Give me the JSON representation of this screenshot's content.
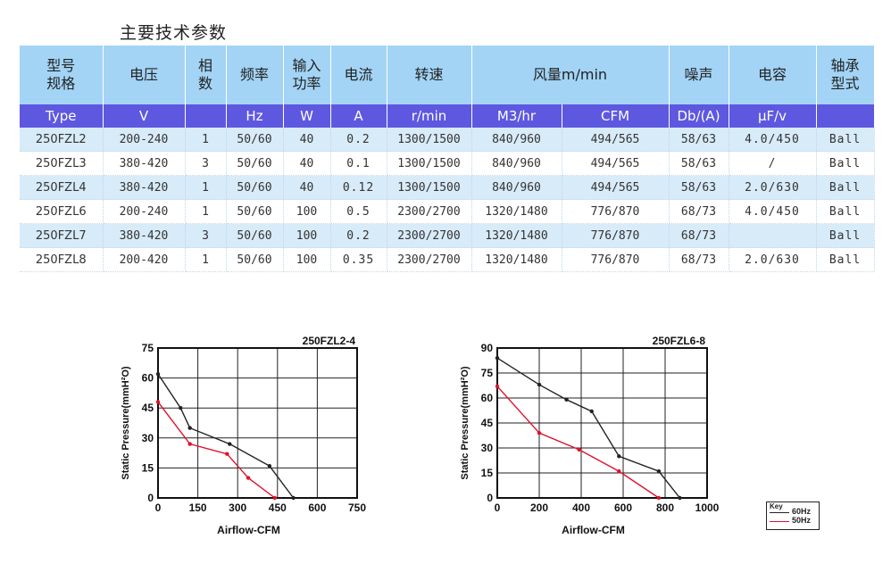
{
  "page_title": "主要技术参数",
  "table": {
    "header1": [
      "型号\n规格",
      "电压",
      "相\n数",
      "频率",
      "输入\n功率",
      "电流",
      "转速",
      "风量m/min",
      "",
      "噪声",
      "电容",
      "轴承\n型式"
    ],
    "header2": [
      "Type",
      "V",
      "",
      "Hz",
      "W",
      "A",
      "r/min",
      "M3/hr",
      "CFM",
      "Db/(A)",
      "μF/v",
      ""
    ],
    "rows": [
      [
        "250FZL2",
        "200-240",
        "1",
        "50/60",
        "40",
        "0.2",
        "1300/1500",
        "840/960",
        "494/565",
        "58/63",
        "4.0/450",
        "Ball"
      ],
      [
        "250FZL3",
        "380-420",
        "3",
        "50/60",
        "40",
        "0.1",
        "1300/1500",
        "840/960",
        "494/565",
        "58/63",
        "/",
        "Ball"
      ],
      [
        "250FZL4",
        "380-420",
        "1",
        "50/60",
        "40",
        "0.12",
        "1300/1500",
        "840/960",
        "494/565",
        "58/63",
        "2.0/630",
        "Ball"
      ],
      [
        "250FZL6",
        "200-240",
        "1",
        "50/60",
        "100",
        "0.5",
        "2300/2700",
        "1320/1480",
        "776/870",
        "68/73",
        "4.0/450",
        "Ball"
      ],
      [
        "250FZL7",
        "380-420",
        "3",
        "50/60",
        "100",
        "0.2",
        "2300/2700",
        "1320/1480",
        "776/870",
        "68/73",
        "",
        "Ball"
      ],
      [
        "250FZL8",
        "200-420",
        "1",
        "50/60",
        "100",
        "0.35",
        "2300/2700",
        "1320/1480",
        "776/870",
        "68/73",
        "2.0/630",
        "Ball"
      ]
    ]
  },
  "colors": {
    "header_light": "#a3d4f6",
    "header_dark": "#5e58e0",
    "row_alt": "#d8ebf9",
    "curve_60hz": "#222222",
    "curve_50hz": "#e0112b"
  },
  "chart_data": [
    {
      "type": "line",
      "title": "250FZL2-4",
      "xlabel": "Airflow-CFM",
      "ylabel": "Static Pressure(mmH²O)",
      "xlim": [
        0,
        750
      ],
      "ylim": [
        0,
        75
      ],
      "xticks": [
        0,
        150,
        300,
        450,
        600,
        750
      ],
      "yticks": [
        0,
        15,
        30,
        45,
        60,
        75
      ],
      "grid": true,
      "series": [
        {
          "name": "60Hz",
          "x": [
            0,
            85,
            120,
            270,
            420,
            510
          ],
          "y": [
            62,
            45,
            35,
            27,
            16,
            0
          ]
        },
        {
          "name": "50Hz",
          "x": [
            0,
            120,
            260,
            340,
            440
          ],
          "y": [
            48,
            27,
            22,
            10,
            0
          ]
        }
      ]
    },
    {
      "type": "line",
      "title": "250FZL6-8",
      "xlabel": "Airflow-CFM",
      "ylabel": "Static Pressure(mmH²O)",
      "xlim": [
        0,
        1000
      ],
      "ylim": [
        0,
        90
      ],
      "xticks": [
        0,
        200,
        400,
        600,
        800,
        1000
      ],
      "yticks": [
        0,
        15,
        30,
        45,
        60,
        75,
        90
      ],
      "grid": true,
      "series": [
        {
          "name": "60Hz",
          "x": [
            0,
            200,
            330,
            450,
            580,
            770,
            870
          ],
          "y": [
            84,
            68,
            59,
            52,
            25,
            16,
            0
          ]
        },
        {
          "name": "50Hz",
          "x": [
            0,
            200,
            390,
            580,
            770
          ],
          "y": [
            67,
            39,
            29,
            16,
            0
          ]
        }
      ]
    }
  ],
  "legend": {
    "title": "Key",
    "items": [
      {
        "label": "60Hz"
      },
      {
        "label": "50Hz"
      }
    ]
  }
}
